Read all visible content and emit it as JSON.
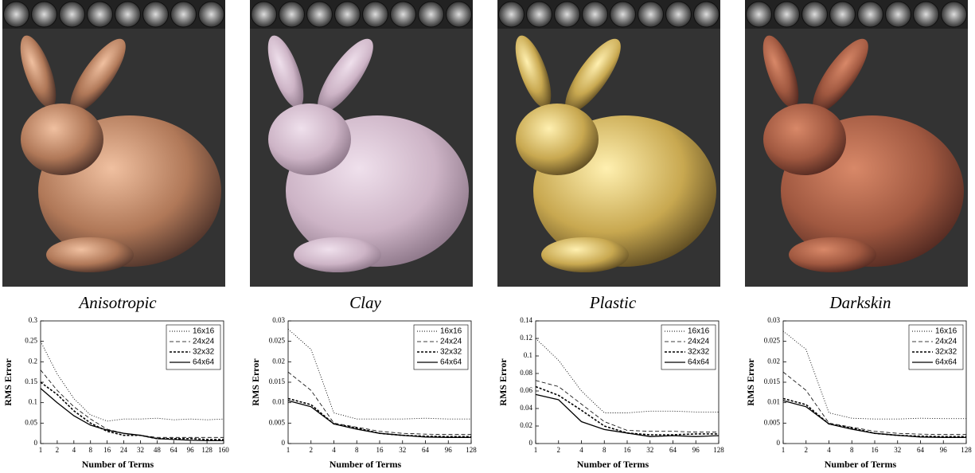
{
  "chart_data": [
    {
      "type": "line",
      "title": "Anisotropic",
      "xlabel": "Number of Terms",
      "ylabel": "RMS Error",
      "categories": [
        "1",
        "2",
        "4",
        "8",
        "16",
        "24",
        "32",
        "48",
        "64",
        "96",
        "128",
        "160"
      ],
      "ylim": [
        0,
        0.3
      ],
      "yticks": [
        0,
        0.05,
        0.1,
        0.15,
        0.2,
        0.25,
        0.3
      ],
      "legend": "top-right",
      "series": [
        {
          "name": "16x16",
          "color": "#000000",
          "style": "dotted",
          "values": [
            0.25,
            0.17,
            0.11,
            0.07,
            0.055,
            0.06,
            0.06,
            0.062,
            0.058,
            0.06,
            0.058,
            0.06
          ]
        },
        {
          "name": "24x24",
          "color": "#000000",
          "style": "dashed",
          "values": [
            0.18,
            0.13,
            0.09,
            0.06,
            0.035,
            0.025,
            0.02,
            0.015,
            0.015,
            0.015,
            0.015,
            0.015
          ]
        },
        {
          "name": "32x32",
          "color": "#000000",
          "style": "heavy-dashed",
          "values": [
            0.15,
            0.12,
            0.08,
            0.05,
            0.03,
            0.02,
            0.02,
            0.012,
            0.012,
            0.012,
            0.01,
            0.01
          ]
        },
        {
          "name": "64x64",
          "color": "#000000",
          "style": "solid",
          "values": [
            0.135,
            0.1,
            0.068,
            0.045,
            0.033,
            0.025,
            0.02,
            0.012,
            0.01,
            0.008,
            0.007,
            0.007
          ]
        }
      ]
    },
    {
      "type": "line",
      "title": "Clay",
      "xlabel": "Number of Terms",
      "ylabel": "RMS Error",
      "categories": [
        "1",
        "2",
        "4",
        "8",
        "16",
        "32",
        "64",
        "96",
        "128"
      ],
      "ylim": [
        0,
        0.03
      ],
      "yticks": [
        0,
        0.005,
        0.01,
        0.015,
        0.02,
        0.025,
        0.03
      ],
      "legend": "top-right",
      "series": [
        {
          "name": "16x16",
          "color": "#000000",
          "style": "dotted",
          "values": [
            0.028,
            0.023,
            0.0075,
            0.006,
            0.006,
            0.006,
            0.0062,
            0.006,
            0.006
          ]
        },
        {
          "name": "24x24",
          "color": "#000000",
          "style": "dashed",
          "values": [
            0.0175,
            0.013,
            0.005,
            0.004,
            0.003,
            0.0025,
            0.0023,
            0.0022,
            0.0022
          ]
        },
        {
          "name": "32x32",
          "color": "#000000",
          "style": "heavy-dashed",
          "values": [
            0.011,
            0.0095,
            0.0048,
            0.0038,
            0.0025,
            0.002,
            0.0018,
            0.0017,
            0.0017
          ]
        },
        {
          "name": "64x64",
          "color": "#000000",
          "style": "solid",
          "values": [
            0.0105,
            0.009,
            0.0048,
            0.0035,
            0.0025,
            0.002,
            0.0016,
            0.0015,
            0.0015
          ]
        }
      ]
    },
    {
      "type": "line",
      "title": "Plastic",
      "xlabel": "Number of Terms",
      "ylabel": "RMS Error",
      "categories": [
        "1",
        "2",
        "4",
        "8",
        "16",
        "32",
        "64",
        "96",
        "128"
      ],
      "ylim": [
        0,
        0.14
      ],
      "yticks": [
        0,
        0.02,
        0.04,
        0.06,
        0.08,
        0.1,
        0.12,
        0.14
      ],
      "legend": "top-right",
      "series": [
        {
          "name": "16x16",
          "color": "#000000",
          "style": "dotted",
          "values": [
            0.12,
            0.095,
            0.06,
            0.035,
            0.035,
            0.037,
            0.037,
            0.036,
            0.036
          ]
        },
        {
          "name": "24x24",
          "color": "#000000",
          "style": "dashed",
          "values": [
            0.072,
            0.065,
            0.045,
            0.025,
            0.015,
            0.014,
            0.014,
            0.013,
            0.013
          ]
        },
        {
          "name": "32x32",
          "color": "#000000",
          "style": "heavy-dashed",
          "values": [
            0.065,
            0.055,
            0.038,
            0.02,
            0.012,
            0.01,
            0.01,
            0.011,
            0.011
          ]
        },
        {
          "name": "64x64",
          "color": "#000000",
          "style": "solid",
          "values": [
            0.056,
            0.05,
            0.025,
            0.016,
            0.012,
            0.008,
            0.009,
            0.008,
            0.009
          ]
        }
      ]
    },
    {
      "type": "line",
      "title": "Darkskin",
      "xlabel": "Number of Terms",
      "ylabel": "RMS Error",
      "categories": [
        "1",
        "2",
        "4",
        "8",
        "16",
        "32",
        "64",
        "96",
        "128"
      ],
      "ylim": [
        0,
        0.03
      ],
      "yticks": [
        0,
        0.005,
        0.01,
        0.015,
        0.02,
        0.025,
        0.03
      ],
      "legend": "top-right",
      "series": [
        {
          "name": "16x16",
          "color": "#000000",
          "style": "dotted",
          "values": [
            0.0275,
            0.023,
            0.0075,
            0.0062,
            0.006,
            0.006,
            0.0062,
            0.0061,
            0.0061
          ]
        },
        {
          "name": "24x24",
          "color": "#000000",
          "style": "dashed",
          "values": [
            0.0175,
            0.013,
            0.005,
            0.004,
            0.003,
            0.0025,
            0.0023,
            0.0022,
            0.0022
          ]
        },
        {
          "name": "32x32",
          "color": "#000000",
          "style": "heavy-dashed",
          "values": [
            0.011,
            0.0095,
            0.0048,
            0.0038,
            0.0025,
            0.002,
            0.0018,
            0.0017,
            0.0017
          ]
        },
        {
          "name": "64x64",
          "color": "#000000",
          "style": "solid",
          "values": [
            0.0105,
            0.009,
            0.0048,
            0.0035,
            0.0025,
            0.002,
            0.0016,
            0.0015,
            0.0015
          ]
        }
      ]
    }
  ]
}
